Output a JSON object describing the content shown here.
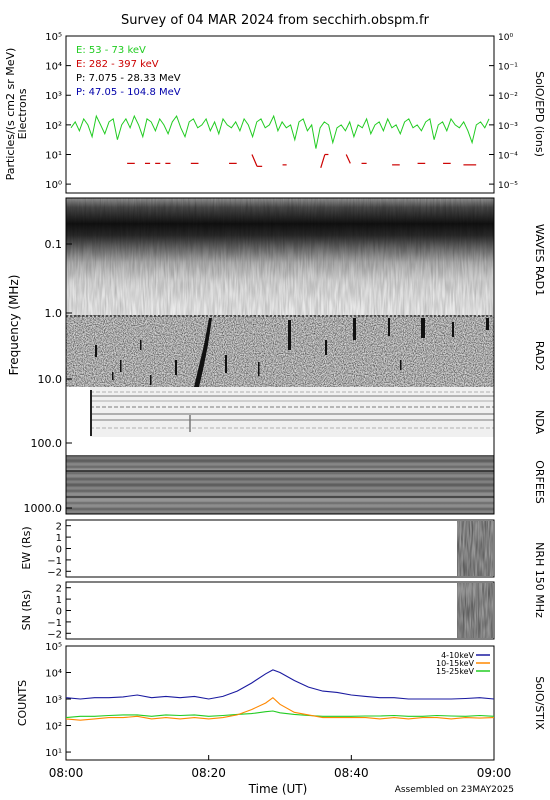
{
  "title": "Survey of 04 MAR 2024 from secchirh.obspm.fr",
  "footer": "Assembled on 23MAY2025",
  "colors": {
    "green": "#22cc22",
    "red": "#cc0000",
    "black": "#000000",
    "blue": "#0000aa",
    "stix_low": "#1a1aa0",
    "stix_mid": "#ff8800",
    "stix_high": "#22cc22"
  },
  "chart_data": [
    {
      "id": "epd",
      "type": "line",
      "ylabel": "Particles/(s cm2 sr MeV)",
      "ylabel2": "Electrons",
      "right_label": "SolO/EPD (ions)",
      "yscale": "log",
      "ylim_exp": [
        -0.3,
        5
      ],
      "left_ticks": [
        "10⁰",
        "10¹",
        "10²",
        "10³",
        "10⁴",
        "10⁵"
      ],
      "right_ticks": [
        "10⁻⁵",
        "10⁻⁴",
        "10⁻³",
        "10⁻²",
        "10⁻¹",
        "10⁰"
      ],
      "legend": [
        {
          "name": "E: 53 - 73 keV",
          "color": "#22cc22"
        },
        {
          "name": "E: 282 - 397 keV",
          "color": "#cc0000"
        },
        {
          "name": "P: 7.075 - 28.33 MeV",
          "color": "#000000"
        },
        {
          "name": "P: 47.05 - 104.8 MeV",
          "color": "#0000aa"
        }
      ],
      "series": [
        {
          "name": "E: 53 - 73 keV",
          "color": "#22cc22",
          "y_log10": [
            1.9,
            2.1,
            1.8,
            2.2,
            2.0,
            1.6,
            2.3,
            2.0,
            1.7,
            2.1,
            2.2,
            1.5,
            2.0,
            2.2,
            1.9,
            2.3,
            2.0,
            1.6,
            2.2,
            2.1,
            1.8,
            2.2,
            2.0,
            1.7,
            2.1,
            2.3,
            1.9,
            1.6,
            2.1,
            2.2,
            1.9,
            2.0,
            2.2,
            1.8,
            2.1,
            1.7,
            2.2,
            2.0,
            1.9,
            2.1,
            1.8,
            2.2,
            2.0,
            1.6,
            2.1,
            2.2,
            1.9,
            2.0,
            2.3,
            1.8,
            2.1,
            1.9,
            2.0,
            1.5,
            2.1,
            2.2,
            1.8,
            2.0,
            1.2,
            1.9,
            2.1,
            2.0,
            1.4,
            1.9,
            2.0,
            1.8,
            2.1,
            1.6,
            2.0,
            1.9,
            2.2,
            1.7,
            2.0,
            2.1,
            1.8,
            2.2,
            1.9,
            2.0,
            1.7,
            2.1,
            2.2,
            1.9,
            2.0,
            1.8,
            2.1,
            2.2,
            1.5,
            2.0,
            2.1,
            1.8,
            2.2,
            2.0,
            1.9,
            2.1,
            1.8,
            1.4,
            2.0,
            2.1,
            1.9,
            2.2
          ]
        },
        {
          "name": "E: 282 - 397 keV",
          "color": "#cc0000",
          "segments": [
            [
              [
                12.0,
                0.7
              ],
              [
                13.5,
                0.7
              ]
            ],
            [
              [
                15.5,
                0.7
              ],
              [
                16.5,
                0.7
              ]
            ],
            [
              [
                17.5,
                0.7
              ],
              [
                18.5,
                0.7
              ]
            ],
            [
              [
                19.5,
                0.7
              ],
              [
                20.5,
                0.7
              ]
            ],
            [
              [
                24.5,
                0.7
              ],
              [
                26.0,
                0.7
              ]
            ],
            [
              [
                32.0,
                0.7
              ],
              [
                33.5,
                0.7
              ]
            ],
            [
              [
                36.5,
                1.0
              ],
              [
                37.5,
                0.6
              ]
            ],
            [
              [
                37.5,
                0.6
              ],
              [
                38.5,
                0.6
              ]
            ],
            [
              [
                42.5,
                0.65
              ],
              [
                43.3,
                0.65
              ]
            ],
            [
              [
                50.0,
                0.55
              ],
              [
                50.8,
                1.0
              ]
            ],
            [
              [
                50.8,
                1.0
              ],
              [
                51.5,
                1.0
              ]
            ],
            [
              [
                55.0,
                1.0
              ],
              [
                55.8,
                0.7
              ]
            ],
            [
              [
                58.0,
                0.7
              ],
              [
                59.0,
                0.7
              ]
            ],
            [
              [
                64.0,
                0.65
              ],
              [
                65.5,
                0.65
              ]
            ],
            [
              [
                69.0,
                0.7
              ],
              [
                70.5,
                0.7
              ]
            ],
            [
              [
                74.0,
                0.7
              ],
              [
                75.5,
                0.7
              ]
            ],
            [
              [
                78.0,
                0.65
              ],
              [
                80.5,
                0.65
              ]
            ]
          ]
        }
      ]
    },
    {
      "id": "spectrogram",
      "type": "heatmap",
      "ylabel": "Frequency (MHz)",
      "yscale": "log",
      "ytick_labels": [
        "0.1",
        "1.0",
        "10.0",
        "100.0",
        "1000.0"
      ],
      "instruments": [
        "WAVES RAD1",
        "RAD2",
        "NDA",
        "ORFEES"
      ]
    },
    {
      "id": "nrh_ew",
      "type": "heatmap",
      "ylabel": "EW (Rs)",
      "ylim": [
        -2.5,
        2.5
      ],
      "ytick_labels": [
        "2",
        "1",
        "0",
        "−1",
        "−2"
      ],
      "active_from_min": 54.5
    },
    {
      "id": "nrh_sn",
      "type": "heatmap",
      "ylabel": "SN (Rs)",
      "ylim": [
        -2.5,
        2.5
      ],
      "ytick_labels": [
        "2",
        "1",
        "0",
        "−1",
        "−2"
      ],
      "active_from_min": 54.5
    },
    {
      "id": "nrh_label",
      "type": "table",
      "right_label": "NRH 150 MHz"
    },
    {
      "id": "stix",
      "type": "line",
      "ylabel": "COUNTS",
      "right_label": "SolO/STIX",
      "yscale": "log",
      "ylim_exp": [
        0.7,
        5
      ],
      "ytick_labels": [
        "10¹",
        "10²",
        "10³",
        "10⁴",
        "10⁵"
      ],
      "xlabel": "Time (UT)",
      "x_min_range": [
        0,
        60
      ],
      "xtick_labels": [
        "08:00",
        "08:20",
        "08:40",
        "09:00"
      ],
      "legend_placement": "top-right",
      "x_minutes": [
        0,
        2,
        4,
        6,
        8,
        10,
        12,
        14,
        16,
        18,
        20,
        22,
        24,
        26,
        28,
        29,
        30,
        32,
        34,
        36,
        38,
        40,
        42,
        44,
        46,
        48,
        50,
        52,
        54,
        56,
        58,
        60
      ],
      "series": [
        {
          "name": "4-10keV",
          "color": "#1a1aa0",
          "y_log10": [
            3.05,
            3.0,
            3.05,
            3.05,
            3.08,
            3.15,
            3.05,
            3.1,
            3.05,
            3.1,
            3.0,
            3.1,
            3.3,
            3.6,
            3.95,
            4.1,
            4.0,
            3.7,
            3.45,
            3.3,
            3.25,
            3.15,
            3.1,
            3.05,
            3.05,
            3.0,
            3.0,
            3.0,
            3.0,
            3.02,
            3.05,
            3.0
          ]
        },
        {
          "name": "10-15keV",
          "color": "#ff8800",
          "y_log10": [
            2.25,
            2.2,
            2.25,
            2.3,
            2.3,
            2.35,
            2.25,
            2.3,
            2.25,
            2.3,
            2.25,
            2.3,
            2.4,
            2.6,
            2.85,
            3.05,
            2.8,
            2.5,
            2.4,
            2.3,
            2.3,
            2.3,
            2.3,
            2.25,
            2.3,
            2.25,
            2.3,
            2.3,
            2.25,
            2.3,
            2.28,
            2.3
          ]
        },
        {
          "name": "15-25keV",
          "color": "#22cc22",
          "y_log10": [
            2.3,
            2.35,
            2.35,
            2.38,
            2.4,
            2.4,
            2.35,
            2.4,
            2.38,
            2.4,
            2.35,
            2.38,
            2.42,
            2.45,
            2.52,
            2.55,
            2.48,
            2.42,
            2.38,
            2.35,
            2.35,
            2.35,
            2.36,
            2.36,
            2.38,
            2.35,
            2.35,
            2.38,
            2.36,
            2.35,
            2.38,
            2.35
          ]
        }
      ]
    }
  ]
}
